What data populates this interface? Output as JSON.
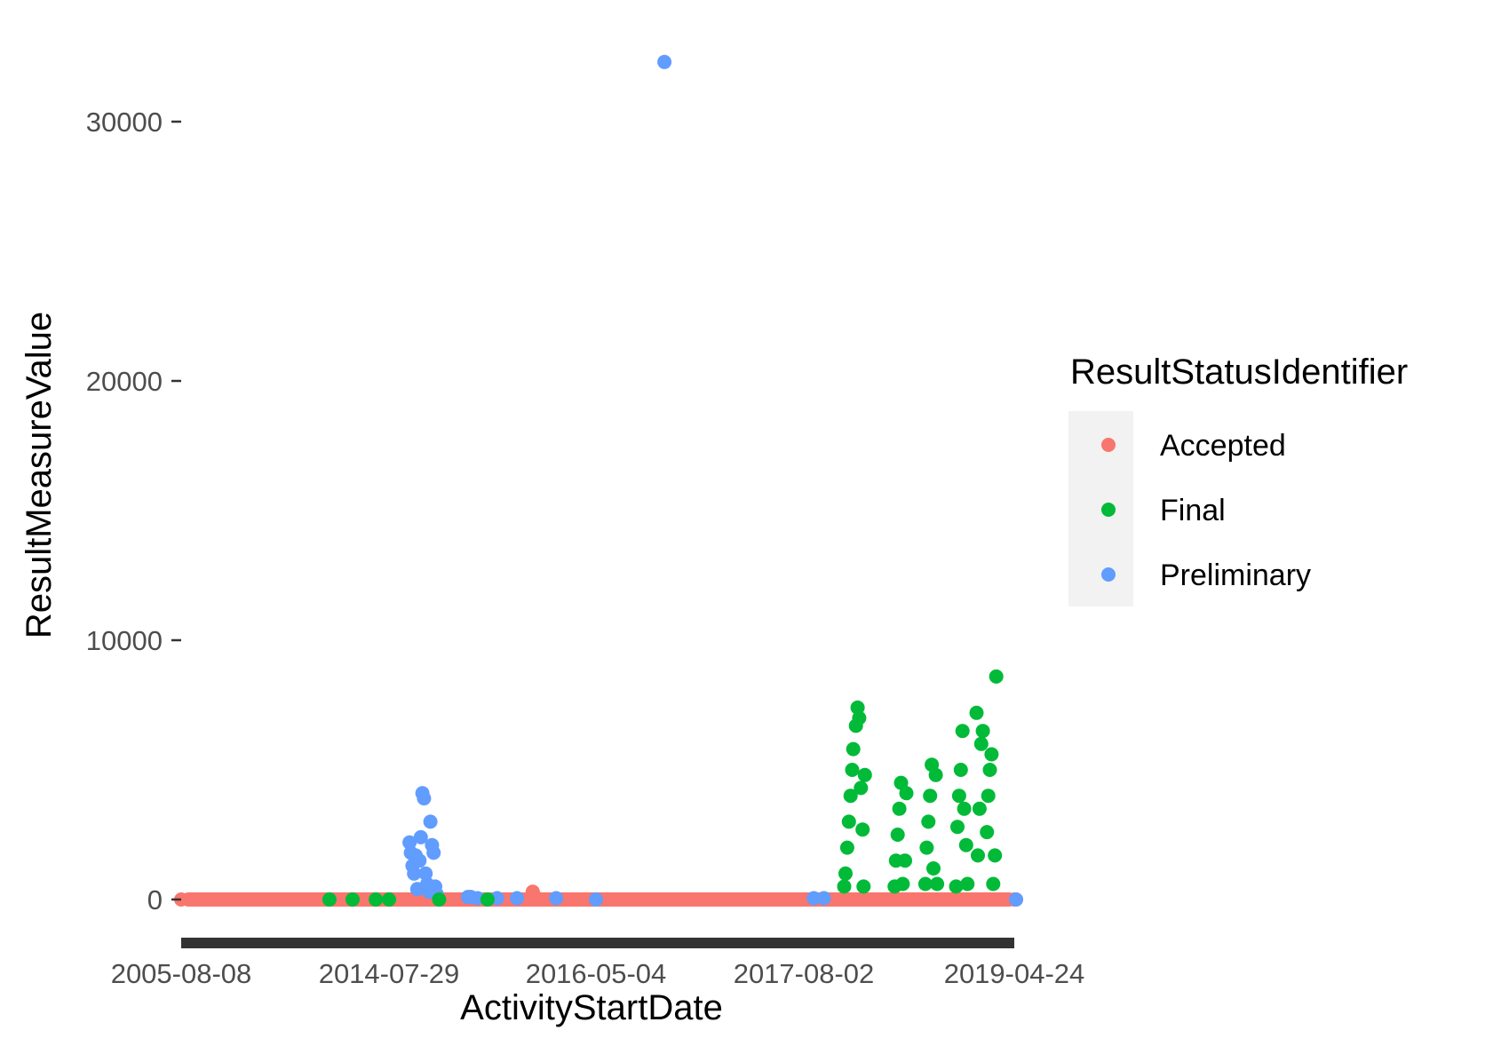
{
  "chart_data": {
    "type": "scatter",
    "xlabel": "ActivityStartDate",
    "ylabel": "ResultMeasureValue",
    "x_tick_labels": [
      "2005-08-08",
      "2014-07-29",
      "2016-05-04",
      "2017-08-02",
      "2019-04-24"
    ],
    "y_ticks": [
      0,
      10000,
      20000,
      30000
    ],
    "y_tick_labels": [
      "0",
      "10000",
      "20000",
      "30000"
    ],
    "ylim": [
      -1500,
      33000
    ],
    "x_axis_note": "discrete date axis; dates drawn at fractional positions between labelled ticks",
    "grid": false,
    "legend": {
      "title": "ResultStatusIdentifier",
      "position": "right"
    },
    "series": [
      {
        "name": "Accepted",
        "color": "#F8766D",
        "points": [
          [
            "2005-08-08",
            0
          ],
          [
            "2008-01-01",
            0
          ],
          [
            "2010-06-01",
            0
          ],
          [
            "2012-01-01",
            0
          ],
          [
            "2013-01-01",
            0
          ],
          [
            "2014-07-29",
            0
          ],
          [
            "2015-03-01",
            0
          ],
          [
            "2015-08-01",
            0
          ],
          [
            "2015-10-15",
            60
          ],
          [
            "2015-10-20",
            300
          ],
          [
            "2015-10-25",
            150
          ],
          [
            "2016-01-01",
            0
          ],
          [
            "2016-05-04",
            0
          ],
          [
            "2016-09-01",
            0
          ],
          [
            "2017-01-01",
            0
          ],
          [
            "2017-08-02",
            0
          ],
          [
            "2017-10-01",
            0
          ],
          [
            "2018-01-01",
            0
          ],
          [
            "2018-05-01",
            0
          ],
          [
            "2018-09-01",
            0
          ],
          [
            "2019-01-01",
            0
          ],
          [
            "2019-04-24",
            0
          ],
          [
            "2019-08-01",
            0
          ]
        ]
      },
      {
        "name": "Final",
        "color": "#00BA38",
        "points": [
          [
            "2012-01-01",
            0
          ],
          [
            "2013-01-01",
            0
          ],
          [
            "2014-01-01",
            0
          ],
          [
            "2014-07-29",
            0
          ],
          [
            "2015-01-01",
            0
          ],
          [
            "2015-06-01",
            0
          ],
          [
            "2017-12-01",
            500
          ],
          [
            "2017-12-05",
            1000
          ],
          [
            "2017-12-10",
            2000
          ],
          [
            "2017-12-15",
            3000
          ],
          [
            "2017-12-20",
            4000
          ],
          [
            "2017-12-25",
            5000
          ],
          [
            "2017-12-28",
            5800
          ],
          [
            "2018-01-05",
            6700
          ],
          [
            "2018-01-10",
            7400
          ],
          [
            "2018-01-15",
            7000
          ],
          [
            "2018-01-20",
            4300
          ],
          [
            "2018-01-25",
            2700
          ],
          [
            "2018-01-28",
            500
          ],
          [
            "2018-02-01",
            4800
          ],
          [
            "2018-05-01",
            500
          ],
          [
            "2018-05-05",
            1500
          ],
          [
            "2018-05-10",
            2500
          ],
          [
            "2018-05-15",
            3500
          ],
          [
            "2018-05-20",
            4500
          ],
          [
            "2018-05-25",
            600
          ],
          [
            "2018-06-01",
            1500
          ],
          [
            "2018-06-05",
            4100
          ],
          [
            "2018-08-01",
            600
          ],
          [
            "2018-08-05",
            2000
          ],
          [
            "2018-08-10",
            3000
          ],
          [
            "2018-08-15",
            4000
          ],
          [
            "2018-08-20",
            5200
          ],
          [
            "2018-08-25",
            1200
          ],
          [
            "2018-09-01",
            4800
          ],
          [
            "2018-09-05",
            600
          ],
          [
            "2018-11-01",
            500
          ],
          [
            "2018-11-05",
            2800
          ],
          [
            "2018-11-10",
            4000
          ],
          [
            "2018-11-15",
            5000
          ],
          [
            "2018-11-20",
            6500
          ],
          [
            "2018-11-25",
            3500
          ],
          [
            "2018-12-01",
            2100
          ],
          [
            "2018-12-05",
            600
          ],
          [
            "2019-01-01",
            7200
          ],
          [
            "2019-01-05",
            1700
          ],
          [
            "2019-01-10",
            3500
          ],
          [
            "2019-01-15",
            6000
          ],
          [
            "2019-01-20",
            6500
          ],
          [
            "2019-02-01",
            2600
          ],
          [
            "2019-02-05",
            4000
          ],
          [
            "2019-02-10",
            5000
          ],
          [
            "2019-02-15",
            5600
          ],
          [
            "2019-02-20",
            600
          ],
          [
            "2019-02-25",
            1700
          ],
          [
            "2019-03-01",
            8600
          ]
        ]
      },
      {
        "name": "Preliminary",
        "color": "#619CFF",
        "points": [
          [
            "2014-10-01",
            2200
          ],
          [
            "2014-10-05",
            1800
          ],
          [
            "2014-10-10",
            1300
          ],
          [
            "2014-10-15",
            1000
          ],
          [
            "2014-10-20",
            1700
          ],
          [
            "2014-10-25",
            400
          ],
          [
            "2014-11-01",
            1500
          ],
          [
            "2014-11-05",
            2400
          ],
          [
            "2014-11-10",
            4100
          ],
          [
            "2014-11-15",
            3900
          ],
          [
            "2014-11-20",
            1000
          ],
          [
            "2014-11-25",
            600
          ],
          [
            "2014-12-01",
            300
          ],
          [
            "2014-12-05",
            3000
          ],
          [
            "2014-12-10",
            2100
          ],
          [
            "2014-12-15",
            1800
          ],
          [
            "2014-12-20",
            500
          ],
          [
            "2014-12-25",
            200
          ],
          [
            "2015-04-01",
            100
          ],
          [
            "2015-04-10",
            100
          ],
          [
            "2015-05-01",
            50
          ],
          [
            "2015-07-01",
            50
          ],
          [
            "2015-09-01",
            50
          ],
          [
            "2016-01-01",
            50
          ],
          [
            "2016-05-04",
            0
          ],
          [
            "2016-10-01",
            32300
          ],
          [
            "2017-09-01",
            50
          ],
          [
            "2017-10-01",
            50
          ],
          [
            "2019-06-01",
            0
          ]
        ]
      }
    ]
  }
}
